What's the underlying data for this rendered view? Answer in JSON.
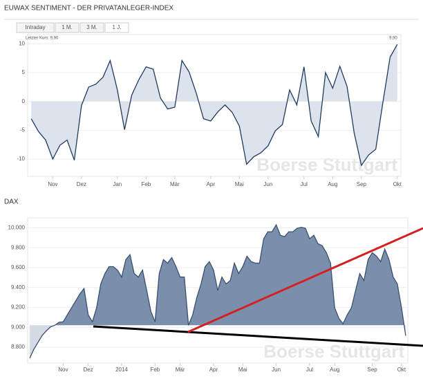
{
  "chart_data": [
    {
      "type": "area-line",
      "title": "EUWAX SENTIMENT - DER PRIVATANLEGER-INDEX",
      "tabs": [
        "Intraday",
        "1 M.",
        "3 M.",
        "1 J."
      ],
      "active_tab": 3,
      "annotation": "Letzter Kurs: 9,90",
      "last_label": "9,90",
      "watermark": "Boerse Stuttgart",
      "categories": [
        null,
        null,
        null,
        "Nov",
        null,
        null,
        null,
        "Dez",
        null,
        null,
        null,
        null,
        "Jan",
        null,
        null,
        null,
        "Feb",
        null,
        null,
        null,
        "Mär",
        null,
        null,
        null,
        null,
        "Apr",
        null,
        null,
        null,
        "Mai",
        null,
        null,
        null,
        "Jun",
        null,
        null,
        null,
        null,
        "Jul",
        null,
        null,
        null,
        "Aug",
        null,
        null,
        null,
        "Sep",
        null,
        null,
        null,
        null,
        "Okt"
      ],
      "series": [
        {
          "name": "Sentiment",
          "color": "#1f3a5f",
          "fill": "#dde3ec",
          "values": [
            -3,
            -5.2,
            -6.7,
            -10,
            -7.6,
            -6.7,
            -10.2,
            -0.7,
            2.5,
            3,
            4.2,
            7.1,
            2,
            -4.9,
            1.1,
            3.8,
            6,
            5.6,
            0.6,
            -1.3,
            -1,
            7.1,
            5.1,
            1.4,
            -3,
            -3.4,
            -1.8,
            -0.6,
            -1.9,
            -4.3,
            -10.9,
            -9.6,
            -8.9,
            -7.7,
            -5.1,
            -4,
            2,
            -0.6,
            6,
            -3.4,
            -6.1,
            5,
            2.3,
            6.1,
            2.6,
            -5.5,
            -11.1,
            -9.3,
            -8.3,
            -0.1,
            7.7,
            9.9
          ]
        }
      ],
      "baseline": 0,
      "ylim": [
        -13,
        11.6
      ],
      "yticks": [
        -10,
        -5,
        0,
        5,
        10
      ],
      "grid": true
    },
    {
      "type": "area-line",
      "title": "DAX",
      "watermark": "Boerse Stuttgart",
      "categories": [
        null,
        null,
        null,
        null,
        null,
        null,
        null,
        null,
        "Nov",
        null,
        null,
        null,
        null,
        null,
        "Dez",
        null,
        null,
        null,
        null,
        null,
        null,
        null,
        "2014",
        null,
        null,
        null,
        null,
        null,
        null,
        null,
        "Feb",
        null,
        null,
        null,
        null,
        null,
        "Mär",
        null,
        null,
        null,
        null,
        null,
        null,
        null,
        "Apr",
        null,
        null,
        null,
        null,
        null,
        null,
        "Mai",
        null,
        null,
        null,
        null,
        null,
        null,
        null,
        "Jun",
        null,
        null,
        null,
        null,
        null,
        null,
        null,
        "Jul",
        null,
        null,
        null,
        null,
        null,
        "Aug",
        null,
        null,
        null,
        null,
        null,
        null,
        null,
        null,
        "Sep",
        null,
        null,
        null,
        null,
        null,
        null,
        "Okt",
        null
      ],
      "series": [
        {
          "name": "DAX",
          "color": "#3b4f6e",
          "fill": "#7a8fab",
          "fill_below": "#d5dbe4",
          "values": [
            8690,
            8780,
            8850,
            8920,
            8965,
            9005,
            9020,
            9050,
            9055,
            9125,
            9195,
            9265,
            9335,
            9390,
            9125,
            9055,
            9195,
            9435,
            9540,
            9610,
            9610,
            9575,
            9505,
            9680,
            9730,
            9540,
            9505,
            9575,
            9370,
            9160,
            9055,
            9540,
            9680,
            9645,
            9700,
            9610,
            9505,
            9505,
            9020,
            9125,
            9300,
            9435,
            9610,
            9660,
            9575,
            9370,
            9505,
            9435,
            9470,
            9645,
            9540,
            9610,
            9715,
            9660,
            9645,
            9645,
            9890,
            9960,
            9960,
            10030,
            9925,
            9910,
            9960,
            9960,
            9995,
            10005,
            9995,
            9890,
            9925,
            9840,
            9820,
            9750,
            9645,
            9195,
            9090,
            9035,
            9125,
            9195,
            9370,
            9540,
            9470,
            9680,
            9750,
            9715,
            9660,
            9785,
            9680,
            9505,
            9435,
            9195,
            8915
          ]
        }
      ],
      "baseline": 9020,
      "ylim": [
        8640,
        10100
      ],
      "yticks": [
        {
          "value": 8800,
          "label": "8.800"
        },
        {
          "value": 9000,
          "label": "9.000"
        },
        {
          "value": 9200,
          "label": "9.200"
        },
        {
          "value": 9400,
          "label": "9.400"
        },
        {
          "value": 9600,
          "label": "9.600"
        },
        {
          "value": 9800,
          "label": "9.800"
        },
        {
          "value": 10000,
          "label": "10.000"
        }
      ],
      "grid": true
    }
  ]
}
